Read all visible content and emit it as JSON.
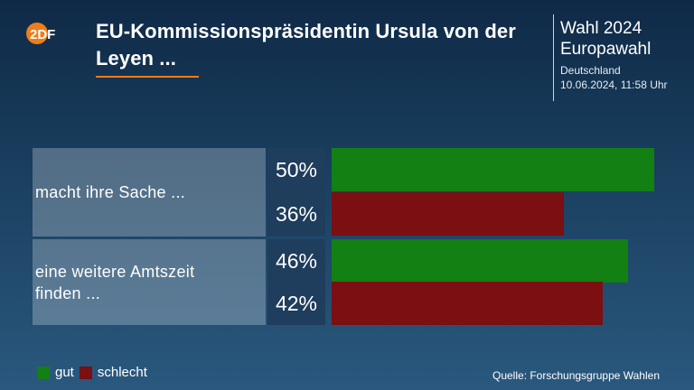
{
  "brand": {
    "logo_text": "2DF",
    "accent": "#f07d19"
  },
  "header": {
    "title": "EU-Kommissionspräsidentin Ursula von der Leyen ...",
    "election": "Wahl 2024",
    "election_sub": "Europawahl",
    "region": "Deutschland",
    "timestamp": "10.06.2024, 11:58 Uhr"
  },
  "colors": {
    "gut": "#128012",
    "schlecht": "#7b0f12"
  },
  "chart_data": {
    "type": "bar",
    "orientation": "horizontal",
    "categories": [
      "macht ihre Sache ...",
      "eine weitere Amtszeit finden ..."
    ],
    "series": [
      {
        "name": "gut",
        "values": [
          50,
          46
        ]
      },
      {
        "name": "schlecht",
        "values": [
          36,
          42
        ]
      }
    ],
    "value_labels": [
      [
        "50%",
        "36%"
      ],
      [
        "46%",
        "42%"
      ]
    ],
    "unit": "%",
    "xlim": [
      0,
      50
    ],
    "legend_position": "bottom-left",
    "grid": false
  },
  "legend": {
    "gut": "gut",
    "schlecht": "schlecht"
  },
  "footer": {
    "source": "Quelle: Forschungsgruppe Wahlen"
  }
}
